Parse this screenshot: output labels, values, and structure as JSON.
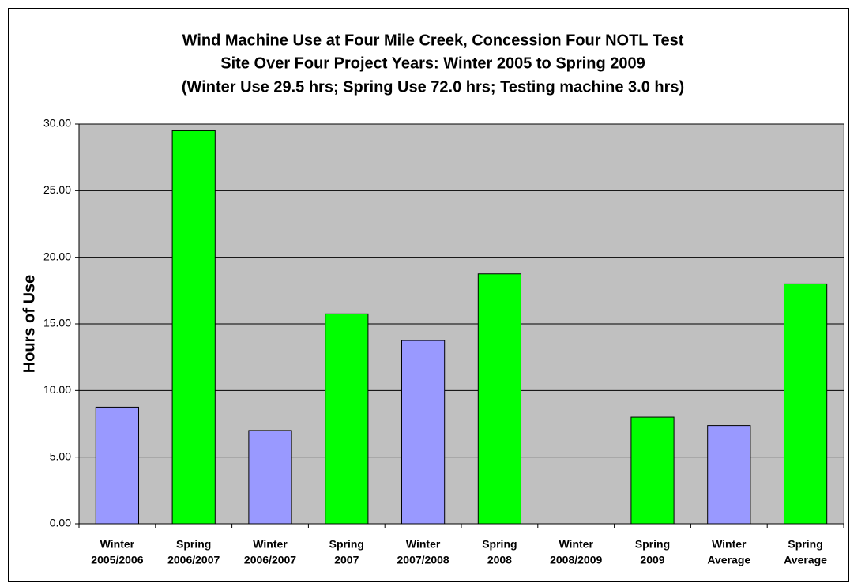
{
  "chart_data": {
    "type": "bar",
    "title": [
      "Wind Machine Use at Four Mile Creek, Concession Four NOTL Test",
      "Site Over Four Project Years: Winter 2005 to Spring 2009",
      "(Winter Use 29.5 hrs; Spring Use 72.0 hrs; Testing machine 3.0 hrs)"
    ],
    "ylabel": "Hours of Use",
    "categories": [
      [
        "Winter",
        "2005/2006"
      ],
      [
        "Spring",
        "2006/2007"
      ],
      [
        "Winter",
        "2006/2007"
      ],
      [
        "Spring",
        "2007"
      ],
      [
        "Winter",
        "2007/2008"
      ],
      [
        "Spring",
        "2008"
      ],
      [
        "Winter",
        "2008/2009"
      ],
      [
        "Spring",
        "2009"
      ],
      [
        "Winter",
        "Average"
      ],
      [
        "Spring",
        "Average"
      ]
    ],
    "values": [
      8.75,
      29.5,
      7.0,
      15.75,
      13.75,
      18.75,
      0,
      8.0,
      7.375,
      18.0
    ],
    "colors": [
      "#9999ff",
      "#00ff00",
      "#9999ff",
      "#00ff00",
      "#9999ff",
      "#00ff00",
      "#9999ff",
      "#00ff00",
      "#9999ff",
      "#00ff00"
    ],
    "ylim": [
      0,
      30
    ],
    "yticks": [
      {
        "value": 0,
        "label": "0.00"
      },
      {
        "value": 5,
        "label": "5.00"
      },
      {
        "value": 10,
        "label": "10.00"
      },
      {
        "value": 15,
        "label": "15.00"
      },
      {
        "value": 20,
        "label": "20.00"
      },
      {
        "value": 25,
        "label": "25.00"
      },
      {
        "value": 30,
        "label": "30.00"
      }
    ],
    "grid": true
  }
}
